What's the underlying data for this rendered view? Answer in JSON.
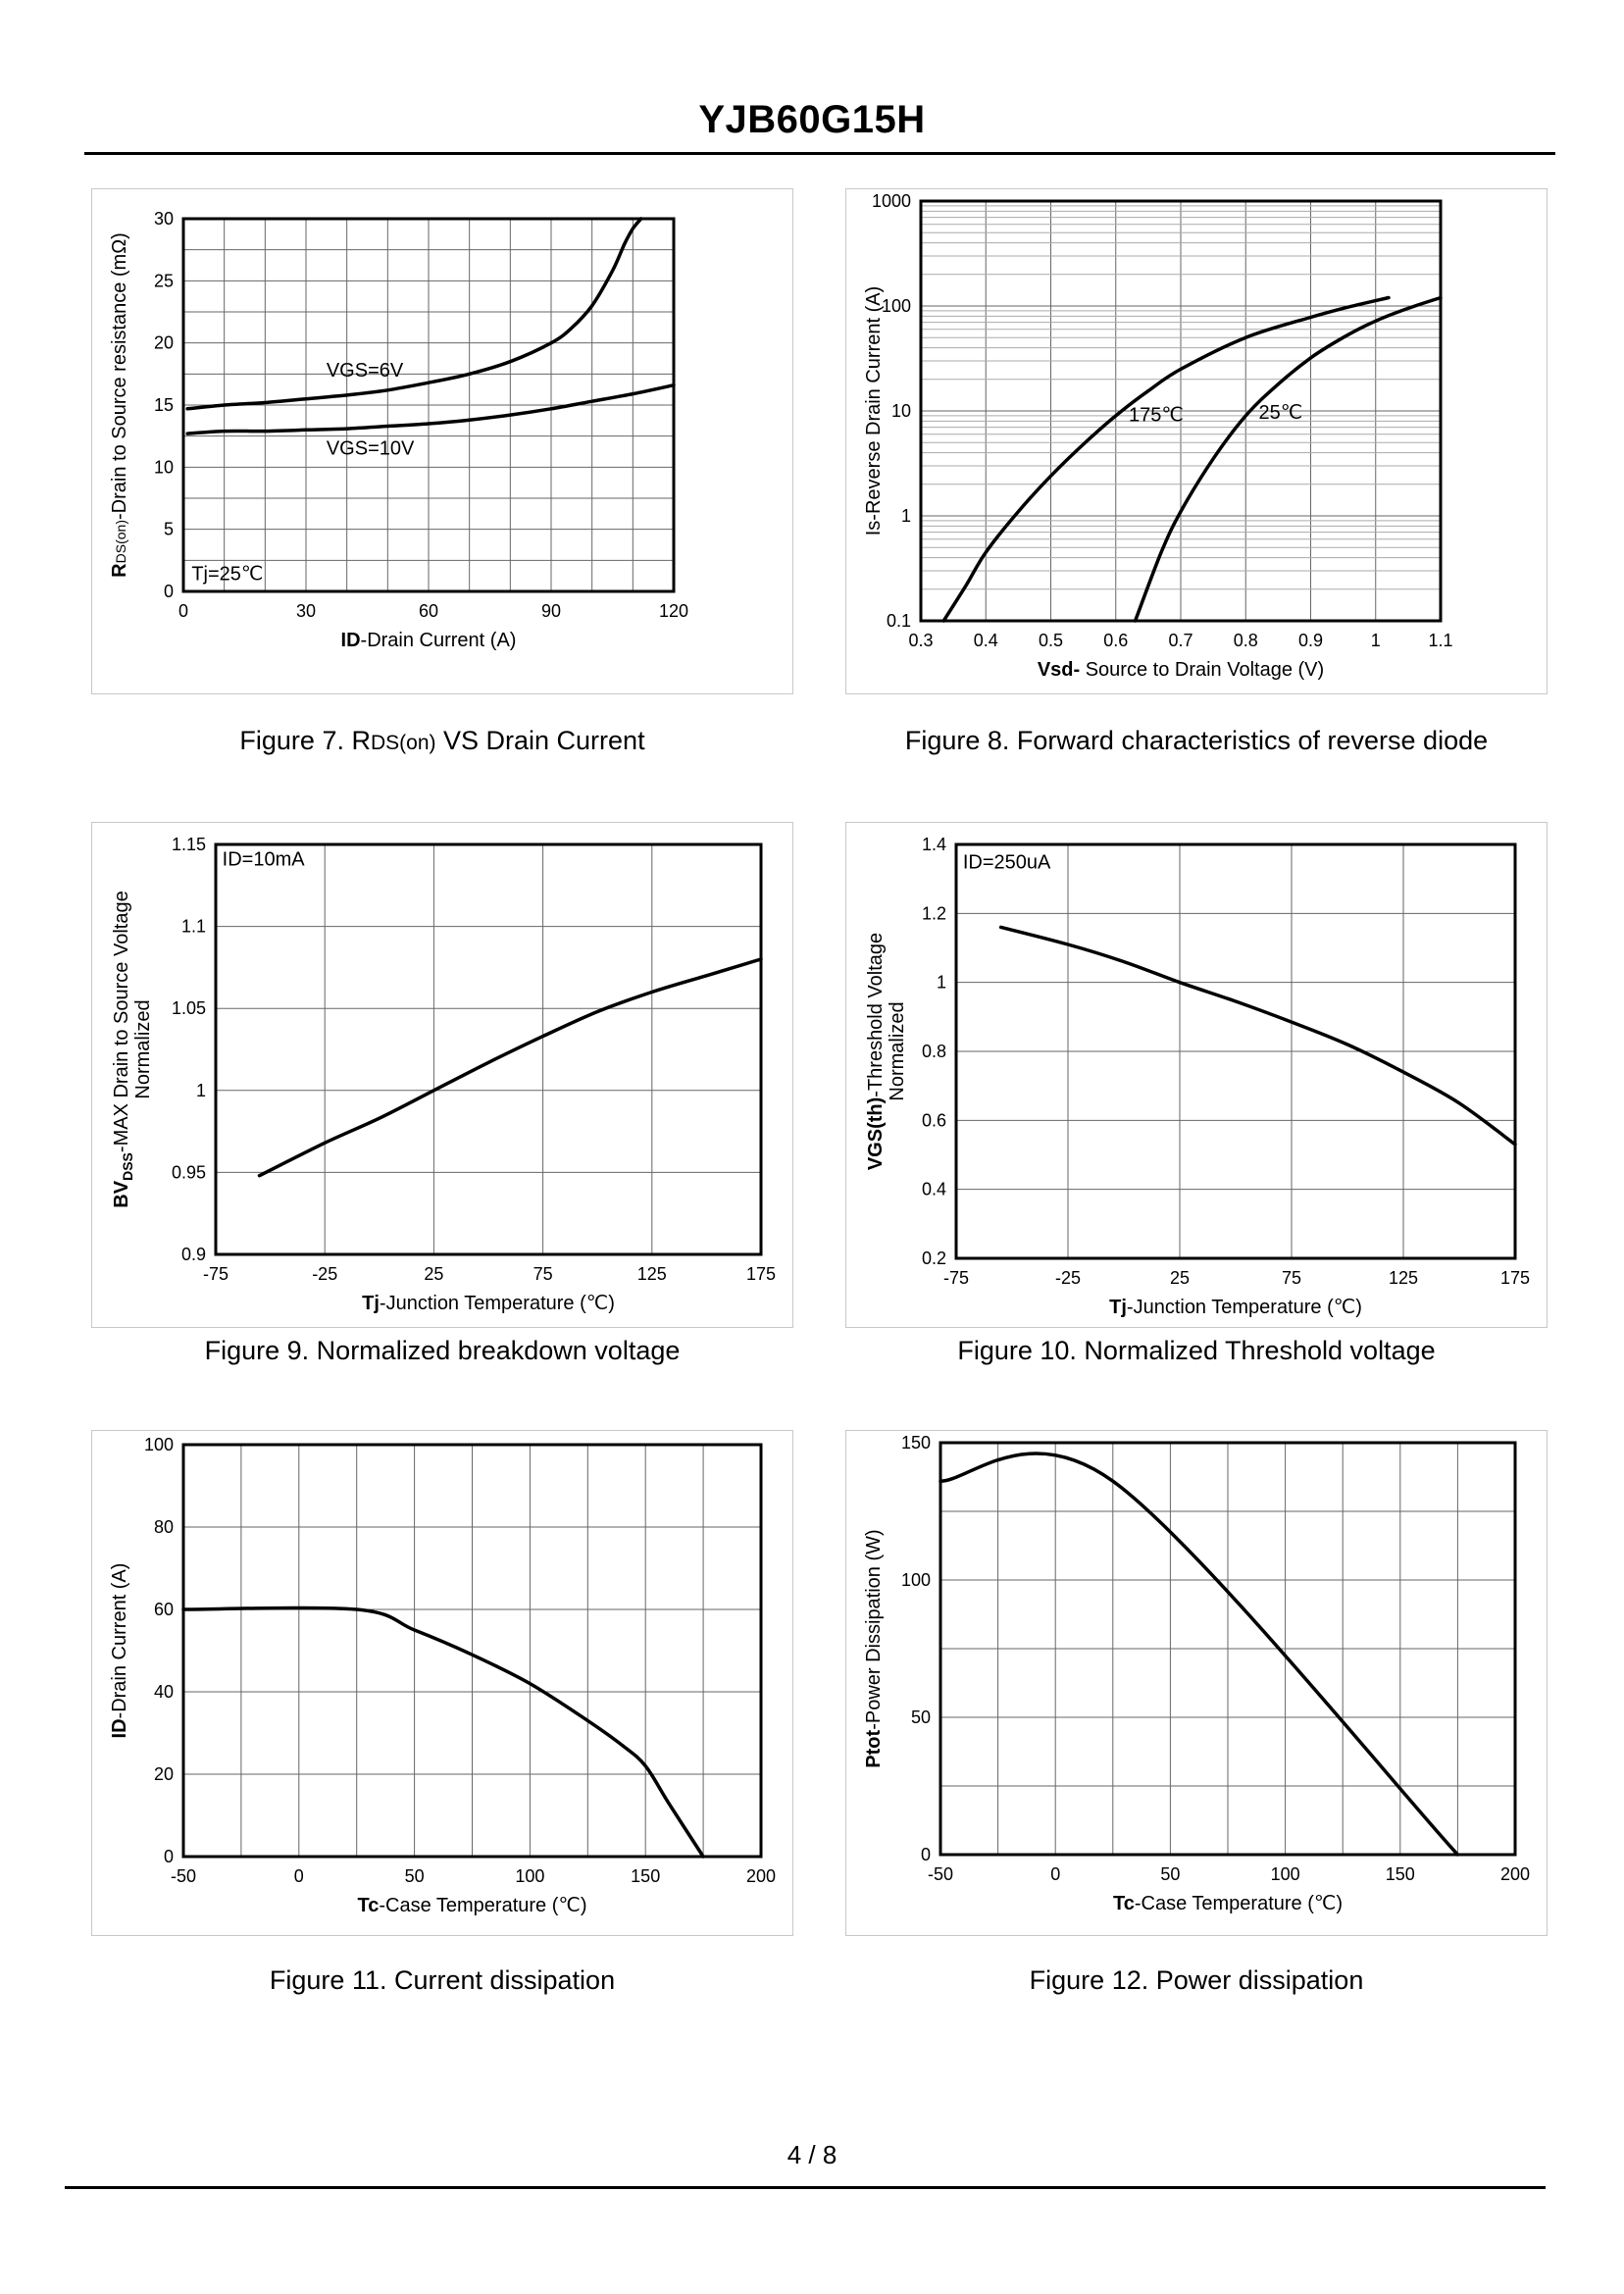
{
  "document": {
    "title": "YJB60G15H",
    "page_number": "4 / 8"
  },
  "chart_data": [
    {
      "id": "fig7",
      "type": "line",
      "caption_pre": "Figure 7.  R",
      "caption_sub": "DS(on)",
      "caption_post": " VS Drain Current",
      "xlabel_bold": "ID",
      "xlabel_rest": "-Drain Current (A)",
      "ylabel_bold": "R",
      "ylabel_sub": "DS(on)",
      "ylabel_rest": "-Drain to Source resistance (mΩ)",
      "xlim": [
        0,
        120
      ],
      "ylim": [
        0,
        30
      ],
      "xscale": "linear",
      "yscale": "linear",
      "x_ticks": [
        0,
        30,
        60,
        90,
        120
      ],
      "x_tick_labels": [
        "0",
        "30",
        "60",
        "90",
        "120"
      ],
      "y_ticks": [
        0,
        5,
        10,
        15,
        20,
        25,
        30
      ],
      "y_tick_labels": [
        "0",
        "5",
        "10",
        "15",
        "20",
        "25",
        "30"
      ],
      "x_grid": [
        0,
        10,
        20,
        30,
        40,
        50,
        60,
        70,
        80,
        90,
        100,
        110,
        120
      ],
      "y_grid": [
        0,
        2.5,
        5,
        7.5,
        10,
        12.5,
        15,
        17.5,
        20,
        22.5,
        25,
        27.5,
        30
      ],
      "series": [
        {
          "name": "VGS=6V",
          "x": [
            1,
            10,
            20,
            30,
            40,
            50,
            60,
            70,
            80,
            90,
            95,
            100,
            105,
            108,
            110,
            112
          ],
          "y": [
            14.7,
            15.0,
            15.2,
            15.5,
            15.8,
            16.2,
            16.8,
            17.5,
            18.5,
            20.0,
            21.2,
            23.0,
            25.8,
            28.0,
            29.2,
            30.0
          ]
        },
        {
          "name": "VGS=10V",
          "x": [
            1,
            10,
            20,
            30,
            40,
            50,
            60,
            70,
            80,
            90,
            100,
            110,
            120
          ],
          "y": [
            12.7,
            12.9,
            12.9,
            13.0,
            13.1,
            13.3,
            13.5,
            13.8,
            14.2,
            14.7,
            15.3,
            15.9,
            16.6
          ]
        }
      ],
      "annotations": [
        {
          "text": "VGS=6V",
          "x": 35,
          "y": 17.3
        },
        {
          "text": "VGS=10V",
          "x": 35,
          "y": 11.0
        },
        {
          "text": "Tj=25℃",
          "x": 2,
          "y": 0.9
        }
      ]
    },
    {
      "id": "fig8",
      "type": "line",
      "caption_pre": "Figure 8.  Forward characteristics of reverse diode",
      "caption_sub": "",
      "caption_post": "",
      "xlabel_bold": "Vsd-",
      "xlabel_rest": " Source to Drain Voltage (V)",
      "ylabel_bold": "",
      "ylabel_sub": "",
      "ylabel_rest": "Is-Reverse  Drain Current  (A)",
      "xlim": [
        0.3,
        1.1
      ],
      "ylim": [
        0.1,
        1000
      ],
      "xscale": "linear",
      "yscale": "log",
      "x_ticks": [
        0.3,
        0.4,
        0.5,
        0.6,
        0.7,
        0.8,
        0.9,
        1.0,
        1.1
      ],
      "x_tick_labels": [
        "0.3",
        "0.4",
        "0.5",
        "0.6",
        "0.7",
        "0.8",
        "0.9",
        "1",
        "1.1"
      ],
      "y_ticks": [
        0.1,
        1,
        10,
        100,
        1000
      ],
      "y_tick_labels": [
        "0.1",
        "1",
        "10",
        "100",
        "1000"
      ],
      "x_grid": [
        0.3,
        0.4,
        0.5,
        0.6,
        0.7,
        0.8,
        0.9,
        1.0,
        1.1
      ],
      "y_grid": [
        0.1,
        0.2,
        0.3,
        0.4,
        0.5,
        0.6,
        0.7,
        0.8,
        0.9,
        1,
        2,
        3,
        4,
        5,
        6,
        7,
        8,
        9,
        10,
        20,
        30,
        40,
        50,
        60,
        70,
        80,
        90,
        100,
        200,
        300,
        400,
        500,
        600,
        700,
        800,
        900,
        1000
      ],
      "series": [
        {
          "name": "175℃",
          "x": [
            0.335,
            0.37,
            0.4,
            0.45,
            0.5,
            0.55,
            0.6,
            0.65,
            0.7,
            0.8,
            0.9,
            0.95,
            1.02
          ],
          "y": [
            0.1,
            0.22,
            0.45,
            1.1,
            2.4,
            4.8,
            9.0,
            15.5,
            25.0,
            50.0,
            78.0,
            95.0,
            120.0
          ]
        },
        {
          "name": "25℃",
          "x": [
            0.63,
            0.67,
            0.7,
            0.75,
            0.8,
            0.85,
            0.9,
            0.95,
            1.0,
            1.05,
            1.1
          ],
          "y": [
            0.1,
            0.45,
            1.1,
            3.5,
            9.0,
            18.0,
            32.0,
            50.0,
            72.0,
            95.0,
            120.0
          ]
        }
      ],
      "annotations": [
        {
          "text": "175℃",
          "x": 0.62,
          "y": 8.0
        },
        {
          "text": "25℃",
          "x": 0.82,
          "y": 8.4
        }
      ]
    },
    {
      "id": "fig9",
      "type": "line",
      "caption_pre": "Figure 9.  Normalized breakdown voltage",
      "caption_sub": "",
      "caption_post": "",
      "xlabel_bold": "Tj",
      "xlabel_rest": "-Junction  Temperature (℃)",
      "ylabel_bold": "BV",
      "ylabel_sub": "DSS",
      "ylabel_rest": "-MAX Drain to Source Voltage",
      "ylabel_line2": "Normalized",
      "xlim": [
        -75,
        175
      ],
      "ylim": [
        0.9,
        1.15
      ],
      "xscale": "linear",
      "yscale": "linear",
      "x_ticks": [
        -75,
        -25,
        25,
        75,
        125,
        175
      ],
      "x_tick_labels": [
        "-75",
        "-25",
        "25",
        "75",
        "125",
        "175"
      ],
      "y_ticks": [
        0.9,
        0.95,
        1.0,
        1.05,
        1.1,
        1.15
      ],
      "y_tick_labels": [
        "0.9",
        "0.95",
        "1",
        "1.05",
        "1.1",
        "1.15"
      ],
      "x_grid": [
        -75,
        -25,
        25,
        75,
        125,
        175
      ],
      "y_grid": [
        0.9,
        0.95,
        1.0,
        1.05,
        1.1,
        1.15
      ],
      "series": [
        {
          "name": "BVDSS",
          "x": [
            -55,
            -25,
            0,
            25,
            50,
            75,
            100,
            125,
            150,
            175
          ],
          "y": [
            0.948,
            0.968,
            0.983,
            1.0,
            1.017,
            1.033,
            1.048,
            1.06,
            1.07,
            1.08
          ]
        }
      ],
      "annotations": [
        {
          "text": "ID=10mA",
          "x": -72,
          "y": 1.137
        }
      ]
    },
    {
      "id": "fig10",
      "type": "line",
      "caption_pre": "Figure 10.  Normalized Threshold voltage",
      "caption_sub": "",
      "caption_post": "",
      "xlabel_bold": "Tj",
      "xlabel_rest": "-Junction  Temperature (℃)",
      "ylabel_bold": "VGS(th)",
      "ylabel_sub": "",
      "ylabel_rest": "-Threshold  Voltage",
      "ylabel_line2": "Normalized",
      "xlim": [
        -75,
        175
      ],
      "ylim": [
        0.2,
        1.4
      ],
      "xscale": "linear",
      "yscale": "linear",
      "x_ticks": [
        -75,
        -25,
        25,
        75,
        125,
        175
      ],
      "x_tick_labels": [
        "-75",
        "-25",
        "25",
        "75",
        "125",
        "175"
      ],
      "y_ticks": [
        0.2,
        0.4,
        0.6,
        0.8,
        1.0,
        1.2,
        1.4
      ],
      "y_tick_labels": [
        "0.2",
        "0.4",
        "0.6",
        "0.8",
        "1",
        "1.2",
        "1.4"
      ],
      "x_grid": [
        -75,
        -25,
        25,
        75,
        125,
        175
      ],
      "y_grid": [
        0.2,
        0.4,
        0.6,
        0.8,
        1.0,
        1.2,
        1.4
      ],
      "series": [
        {
          "name": "VGS(th)",
          "x": [
            -55,
            -25,
            0,
            25,
            50,
            75,
            100,
            125,
            150,
            175
          ],
          "y": [
            1.16,
            1.11,
            1.06,
            1.0,
            0.945,
            0.885,
            0.82,
            0.74,
            0.65,
            0.53
          ]
        }
      ],
      "annotations": [
        {
          "text": "ID=250uA",
          "x": -72,
          "y": 1.33
        }
      ]
    },
    {
      "id": "fig11",
      "type": "line",
      "caption_pre": "Figure 11.  Current dissipation",
      "caption_sub": "",
      "caption_post": "",
      "xlabel_bold": "Tc",
      "xlabel_rest": "-Case Temperature (℃)",
      "ylabel_bold": "ID",
      "ylabel_sub": "",
      "ylabel_rest": "-Drain Current (A)",
      "xlim": [
        -50,
        200
      ],
      "ylim": [
        0,
        100
      ],
      "xscale": "linear",
      "yscale": "linear",
      "x_ticks": [
        -50,
        0,
        50,
        100,
        150,
        200
      ],
      "x_tick_labels": [
        "-50",
        "0",
        "50",
        "100",
        "150",
        "200"
      ],
      "y_ticks": [
        0,
        20,
        40,
        60,
        80,
        100
      ],
      "y_tick_labels": [
        "0",
        "20",
        "40",
        "60",
        "80",
        "100"
      ],
      "x_grid": [
        -50,
        -25,
        0,
        25,
        50,
        75,
        100,
        125,
        150,
        175,
        200
      ],
      "y_grid": [
        0,
        20,
        40,
        60,
        80,
        100
      ],
      "series": [
        {
          "name": "ID",
          "x": [
            -50,
            25,
            50,
            75,
            100,
            125,
            140,
            150,
            160,
            175
          ],
          "y": [
            60,
            60,
            55,
            49,
            42,
            33,
            27,
            22,
            13,
            0
          ]
        }
      ],
      "annotations": []
    },
    {
      "id": "fig12",
      "type": "line",
      "caption_pre": "Figure 12.  Power dissipation",
      "caption_sub": "",
      "caption_post": "",
      "xlabel_bold": "Tc",
      "xlabel_rest": "-Case Temperature (℃)",
      "ylabel_bold": "Ptot",
      "ylabel_sub": "",
      "ylabel_rest": "-Power Dissipation (W)",
      "xlim": [
        -50,
        200
      ],
      "ylim": [
        0,
        150
      ],
      "xscale": "linear",
      "yscale": "linear",
      "x_ticks": [
        -50,
        0,
        50,
        100,
        150,
        200
      ],
      "x_tick_labels": [
        "-50",
        "0",
        "50",
        "100",
        "150",
        "200"
      ],
      "y_ticks": [
        0,
        50,
        100,
        150
      ],
      "y_tick_labels": [
        "0",
        "50",
        "100",
        "150"
      ],
      "x_grid": [
        -50,
        -25,
        0,
        25,
        50,
        75,
        100,
        125,
        150,
        175,
        200
      ],
      "y_grid": [
        0,
        25,
        50,
        75,
        100,
        125,
        150
      ],
      "series": [
        {
          "name": "Ptot",
          "x": [
            -50,
            25,
            175
          ],
          "y": [
            136,
            136,
            0
          ]
        }
      ],
      "annotations": []
    }
  ]
}
